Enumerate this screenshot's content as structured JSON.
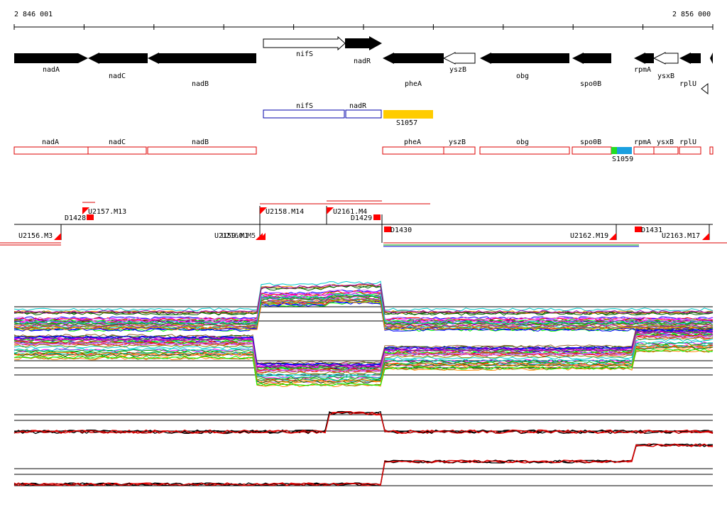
{
  "ruler": {
    "start_label": "2 846 001",
    "end_label": "2 856 000"
  },
  "genes_strand": [
    {
      "name": "nadA",
      "dir": "fwd",
      "filled": true
    },
    {
      "name": "nadC",
      "dir": "rev",
      "filled": true
    },
    {
      "name": "nadB",
      "dir": "rev",
      "filled": true
    },
    {
      "name": "nifS",
      "dir": "fwd",
      "filled": false
    },
    {
      "name": "nadR",
      "dir": "fwd",
      "filled": true
    },
    {
      "name": "pheA",
      "dir": "rev",
      "filled": true
    },
    {
      "name": "yszB",
      "dir": "rev",
      "filled": false
    },
    {
      "name": "obg",
      "dir": "rev",
      "filled": true
    },
    {
      "name": "spo0B",
      "dir": "rev",
      "filled": true
    },
    {
      "name": "rpmA",
      "dir": "rev",
      "filled": true
    },
    {
      "name": "ysxB",
      "dir": "rev",
      "filled": false
    },
    {
      "name": "rplU",
      "dir": "rev",
      "filled": true
    }
  ],
  "operon_boxes": [
    {
      "name": "nifS"
    },
    {
      "name": "nadR"
    }
  ],
  "segments": [
    {
      "name": "S1057",
      "color": "#ffcc00"
    },
    {
      "name": "S1059",
      "color": "#1aa0e0",
      "accent": "#22dd22"
    }
  ],
  "gene_boxes": [
    {
      "name": "nadA"
    },
    {
      "name": "nadC"
    },
    {
      "name": "nadB"
    },
    {
      "name": "pheA"
    },
    {
      "name": "yszB"
    },
    {
      "name": "obg"
    },
    {
      "name": "spo0B"
    },
    {
      "name": "rpmA"
    },
    {
      "name": "ysxB"
    },
    {
      "name": "rplU"
    }
  ],
  "transcripts": [
    {
      "label": "U2156.M3"
    },
    {
      "label": "U2157.M13"
    },
    {
      "label": "D1428"
    },
    {
      "label": "U2158.M14"
    },
    {
      "label": "U2161.M4"
    },
    {
      "label": "D1429"
    },
    {
      "label": "D1430"
    },
    {
      "label": "U2159.M1"
    },
    {
      "label": "U2160.M5"
    },
    {
      "label": "U2162.M19"
    },
    {
      "label": "D1431"
    },
    {
      "label": "U2163.M17"
    }
  ],
  "colors": {
    "gene_fill": "#000000",
    "gene_box": "#dd0000",
    "operon_box": "#0000aa",
    "transcript_flag": "#ff0000",
    "profile_palette": [
      "#ff00ff",
      "#00aa00",
      "#0000ff",
      "#ff8800",
      "#00cccc",
      "#aa00aa",
      "#888800",
      "#ff0000",
      "#00ff00",
      "#cc66ff",
      "#006600",
      "#996633"
    ]
  }
}
